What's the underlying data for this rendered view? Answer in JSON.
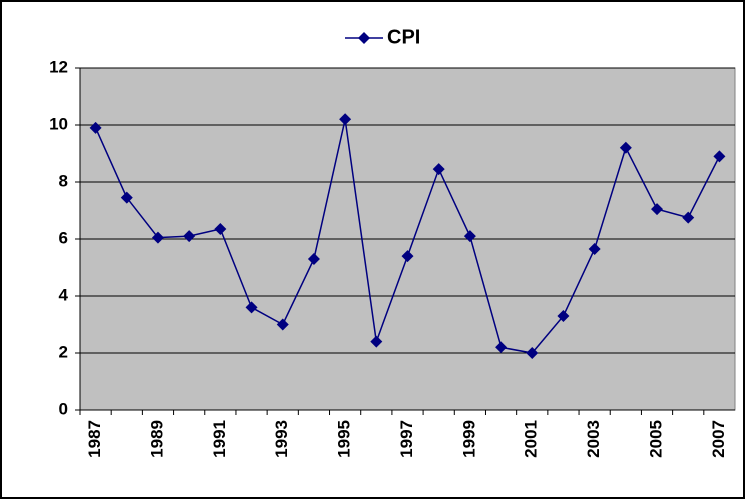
{
  "chart_data": {
    "type": "line",
    "categories": [
      "1987",
      null,
      "1989",
      null,
      "1991",
      null,
      "1993",
      null,
      "1995",
      null,
      "1997",
      null,
      "1999",
      null,
      "2001",
      null,
      "2003",
      null,
      "2005",
      null,
      "2007"
    ],
    "series": [
      {
        "name": "CPI",
        "color": "#000080",
        "values": [
          9.9,
          7.45,
          6.05,
          6.1,
          6.35,
          3.6,
          3.0,
          5.3,
          10.2,
          2.4,
          5.4,
          8.45,
          6.1,
          2.2,
          2.0,
          3.3,
          5.65,
          9.2,
          7.05,
          6.75,
          8.9
        ]
      }
    ],
    "ylim": [
      0,
      12
    ],
    "yticks": [
      0,
      2,
      4,
      6,
      8,
      10,
      12
    ],
    "grid": true,
    "legend": "top"
  }
}
